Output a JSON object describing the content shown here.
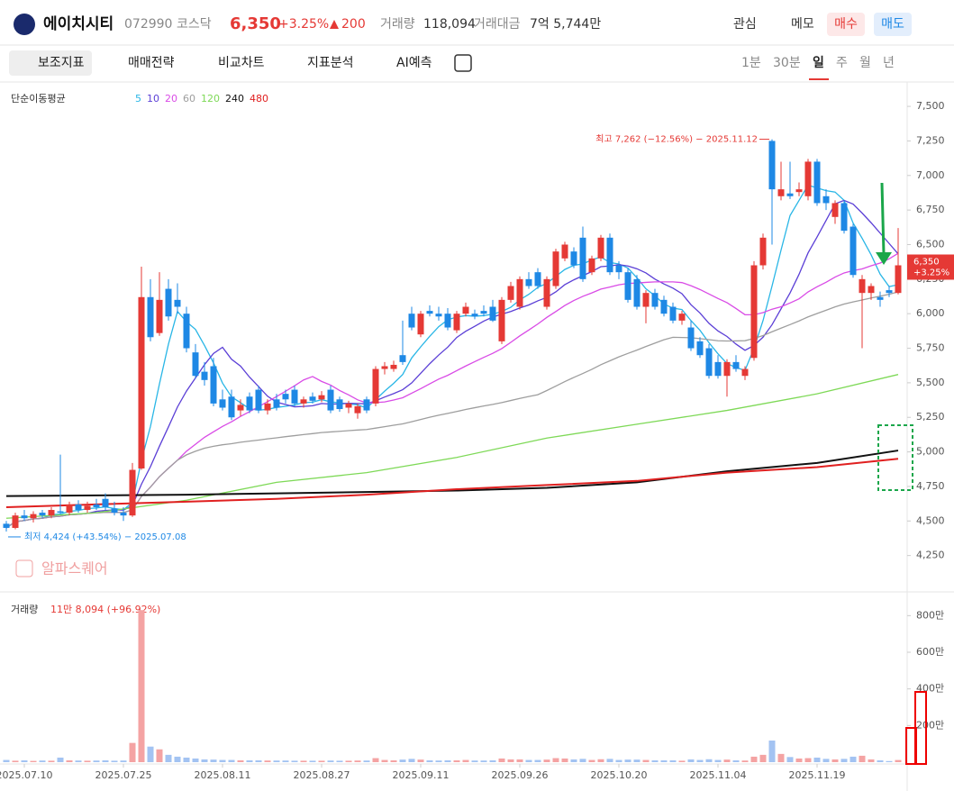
{
  "header": {
    "name": "에이치시티",
    "code": "072990",
    "market": "코스닥",
    "price": "6,350",
    "change_pct": "+3.25%",
    "change": "200",
    "volume_label": "거래량",
    "volume": "118,094",
    "amount_label": "거래대금",
    "amount": "7억 5,744만",
    "buttons": [
      "관심",
      "메모",
      "매수",
      "매도"
    ]
  },
  "toolbar": {
    "items": [
      "보조지표",
      "매매전략",
      "비교차트",
      "지표분석",
      "AI예측"
    ],
    "timeframes": [
      "1분",
      "30분",
      "일",
      "주",
      "월",
      "년"
    ],
    "selected": "일"
  },
  "watermark": "알파스퀘어",
  "chart_data": {
    "type": "candlestick",
    "ma_label": "단순이동평균",
    "up_color": "#e53935",
    "down_color": "#1e88e5",
    "ylim": [
      4000,
      7670
    ],
    "yticks": [
      {
        "value": 4250,
        "label": "4,250"
      },
      {
        "value": 4500,
        "label": "4,500"
      },
      {
        "value": 4750,
        "label": "4,750"
      },
      {
        "value": 5000,
        "label": "5,000"
      },
      {
        "value": 5250,
        "label": "5,250"
      },
      {
        "value": 5500,
        "label": "5,500"
      },
      {
        "value": 5750,
        "label": "5,750"
      },
      {
        "value": 6000,
        "label": "6,000"
      },
      {
        "value": 6250,
        "label": "6,250"
      },
      {
        "value": 6500,
        "label": "6,500"
      },
      {
        "value": 6750,
        "label": "6,750"
      },
      {
        "value": 7000,
        "label": "7,000"
      },
      {
        "value": 7250,
        "label": "7,250"
      },
      {
        "value": 7500,
        "label": "7,500"
      }
    ],
    "xticks": [
      {
        "value": 2,
        "label": "2025.07.10"
      },
      {
        "value": 13,
        "label": "2025.07.25"
      },
      {
        "value": 24,
        "label": "2025.08.11"
      },
      {
        "value": 35,
        "label": "2025.08.27"
      },
      {
        "value": 46,
        "label": "2025.09.11"
      },
      {
        "value": 57,
        "label": "2025.09.26"
      },
      {
        "value": 68,
        "label": "2025.10.20"
      },
      {
        "value": 79,
        "label": "2025.11.04"
      },
      {
        "value": 90,
        "label": "2025.11.19"
      }
    ],
    "candles": [
      [
        4480,
        4500,
        4424,
        4450
      ],
      [
        4450,
        4560,
        4440,
        4540
      ],
      [
        4540,
        4580,
        4500,
        4520
      ],
      [
        4520,
        4570,
        4490,
        4550
      ],
      [
        4560,
        4580,
        4520,
        4540
      ],
      [
        4540,
        4600,
        4520,
        4580
      ],
      [
        4570,
        4980,
        4550,
        4560
      ],
      [
        4560,
        4640,
        4540,
        4620
      ],
      [
        4620,
        4650,
        4560,
        4580
      ],
      [
        4580,
        4640,
        4560,
        4610
      ],
      [
        4620,
        4660,
        4580,
        4600
      ],
      [
        4660,
        4700,
        4580,
        4600
      ],
      [
        4590,
        4640,
        4540,
        4560
      ],
      [
        4560,
        4600,
        4500,
        4540
      ],
      [
        4540,
        4920,
        4530,
        4870
      ],
      [
        4880,
        6340,
        4870,
        6120
      ],
      [
        6120,
        6250,
        5800,
        5830
      ],
      [
        5860,
        6300,
        5840,
        6100
      ],
      [
        6180,
        6250,
        5950,
        5980
      ],
      [
        6100,
        6220,
        6000,
        6050
      ],
      [
        6000,
        6050,
        5720,
        5750
      ],
      [
        5720,
        5780,
        5530,
        5550
      ],
      [
        5580,
        5650,
        5480,
        5520
      ],
      [
        5620,
        5680,
        5330,
        5350
      ],
      [
        5380,
        5450,
        5300,
        5320
      ],
      [
        5400,
        5450,
        5230,
        5250
      ],
      [
        5300,
        5380,
        5260,
        5340
      ],
      [
        5400,
        5430,
        5280,
        5300
      ],
      [
        5450,
        5480,
        5280,
        5300
      ],
      [
        5300,
        5380,
        5270,
        5350
      ],
      [
        5380,
        5420,
        5300,
        5320
      ],
      [
        5420,
        5450,
        5350,
        5380
      ],
      [
        5450,
        5480,
        5330,
        5350
      ],
      [
        5350,
        5400,
        5320,
        5380
      ],
      [
        5400,
        5430,
        5350,
        5370
      ],
      [
        5380,
        5440,
        5360,
        5410
      ],
      [
        5450,
        5480,
        5280,
        5300
      ],
      [
        5380,
        5400,
        5290,
        5310
      ],
      [
        5320,
        5370,
        5280,
        5350
      ],
      [
        5280,
        5350,
        5240,
        5330
      ],
      [
        5380,
        5400,
        5280,
        5300
      ],
      [
        5350,
        5620,
        5330,
        5600
      ],
      [
        5600,
        5650,
        5560,
        5620
      ],
      [
        5600,
        5660,
        5580,
        5630
      ],
      [
        5700,
        5950,
        5630,
        5650
      ],
      [
        6000,
        6050,
        5880,
        5900
      ],
      [
        5850,
        6020,
        5830,
        6000
      ],
      [
        6020,
        6060,
        5980,
        6000
      ],
      [
        6000,
        6050,
        5950,
        5980
      ],
      [
        6000,
        6040,
        5880,
        5900
      ],
      [
        5880,
        6020,
        5860,
        6000
      ],
      [
        6000,
        6080,
        5980,
        6050
      ],
      [
        6000,
        6030,
        5960,
        5980
      ],
      [
        6020,
        6060,
        5980,
        6000
      ],
      [
        6050,
        6100,
        5940,
        5950
      ],
      [
        5800,
        6120,
        5780,
        6100
      ],
      [
        6100,
        6230,
        6080,
        6200
      ],
      [
        6050,
        6270,
        6030,
        6250
      ],
      [
        6250,
        6300,
        6180,
        6200
      ],
      [
        6300,
        6330,
        6180,
        6200
      ],
      [
        6050,
        6270,
        6030,
        6250
      ],
      [
        6200,
        6470,
        6180,
        6450
      ],
      [
        6400,
        6520,
        6380,
        6500
      ],
      [
        6450,
        6480,
        6330,
        6350
      ],
      [
        6550,
        6630,
        6230,
        6250
      ],
      [
        6300,
        6420,
        6280,
        6400
      ],
      [
        6400,
        6570,
        6380,
        6550
      ],
      [
        6550,
        6580,
        6280,
        6300
      ],
      [
        6350,
        6380,
        6250,
        6300
      ],
      [
        6300,
        6330,
        6080,
        6100
      ],
      [
        6250,
        6280,
        6030,
        6050
      ],
      [
        6050,
        6170,
        5930,
        6150
      ],
      [
        6150,
        6180,
        6030,
        6050
      ],
      [
        6100,
        6130,
        5980,
        6000
      ],
      [
        6050,
        6080,
        5930,
        5950
      ],
      [
        5950,
        6020,
        5920,
        6000
      ],
      [
        5900,
        5950,
        5730,
        5750
      ],
      [
        5800,
        5830,
        5680,
        5700
      ],
      [
        5750,
        5780,
        5530,
        5550
      ],
      [
        5650,
        5700,
        5530,
        5550
      ],
      [
        5550,
        5670,
        5400,
        5650
      ],
      [
        5650,
        5700,
        5580,
        5600
      ],
      [
        5550,
        5620,
        5520,
        5600
      ],
      [
        5680,
        6380,
        5660,
        6350
      ],
      [
        6350,
        6580,
        6320,
        6550
      ],
      [
        7250,
        7262,
        6500,
        6900
      ],
      [
        6850,
        7100,
        6820,
        6900
      ],
      [
        6870,
        7100,
        6830,
        6850
      ],
      [
        6880,
        6950,
        6850,
        6900
      ],
      [
        6850,
        7120,
        6820,
        7100
      ],
      [
        7100,
        7120,
        6780,
        6800
      ],
      [
        6850,
        6900,
        6750,
        6800
      ],
      [
        6700,
        6820,
        6650,
        6800
      ],
      [
        6800,
        6820,
        6580,
        6600
      ],
      [
        6630,
        6650,
        6260,
        6280
      ],
      [
        6150,
        6280,
        5750,
        6250
      ],
      [
        6150,
        6220,
        6100,
        6200
      ],
      [
        6120,
        6160,
        6050,
        6100
      ],
      [
        6170,
        6200,
        6120,
        6150
      ],
      [
        6150,
        6620,
        6140,
        6350
      ]
    ],
    "ma": [
      {
        "period": 5,
        "color": "#29b6e6"
      },
      {
        "period": 10,
        "color": "#5b3fd6"
      },
      {
        "period": 20,
        "color": "#d94be6"
      },
      {
        "period": 60,
        "color": "#9e9e9e"
      },
      {
        "period": 120,
        "color": "#7ed957",
        "x": [
          0,
          10,
          20,
          30,
          40,
          50,
          60,
          70,
          80,
          90,
          99
        ],
        "values": [
          4520,
          4560,
          4650,
          4780,
          4850,
          4960,
          5100,
          5200,
          5300,
          5420,
          5560
        ]
      },
      {
        "period": 240,
        "color": "#111111",
        "x": [
          0,
          10,
          20,
          30,
          40,
          50,
          60,
          70,
          80,
          90,
          99
        ],
        "values": [
          4680,
          4685,
          4690,
          4700,
          4710,
          4720,
          4740,
          4780,
          4860,
          4920,
          5010
        ]
      },
      {
        "period": 480,
        "color": "#e02020",
        "x": [
          0,
          10,
          20,
          30,
          40,
          50,
          60,
          70,
          80,
          90,
          99
        ],
        "values": [
          4600,
          4620,
          4640,
          4660,
          4690,
          4730,
          4760,
          4790,
          4850,
          4890,
          4950
        ]
      }
    ],
    "max_label": "최고 7,262 (−12.56%) − 2025.11.12",
    "min_label": "최저 4,424 (+43.54%) − 2025.07.08",
    "last_price": {
      "value": 6350,
      "label": "6,350",
      "change": "+3.25%"
    },
    "volume": {
      "title": "거래량",
      "last": "11만 8,094 (+96.92%)",
      "ylim": [
        0,
        900
      ],
      "yticks": [
        {
          "value": 200,
          "label": "200만"
        },
        {
          "value": 400,
          "label": "400만"
        },
        {
          "value": 600,
          "label": "600만"
        },
        {
          "value": 800,
          "label": "800만"
        }
      ],
      "values": [
        12,
        8,
        10,
        7,
        9,
        8,
        25,
        10,
        9,
        8,
        9,
        10,
        8,
        9,
        105,
        830,
        85,
        70,
        40,
        30,
        25,
        20,
        15,
        14,
        12,
        12,
        10,
        10,
        10,
        9,
        9,
        9,
        8,
        8,
        8,
        8,
        9,
        8,
        8,
        9,
        9,
        22,
        12,
        10,
        14,
        18,
        14,
        10,
        9,
        10,
        10,
        12,
        9,
        9,
        10,
        20,
        15,
        15,
        12,
        12,
        14,
        22,
        20,
        15,
        18,
        12,
        16,
        18,
        12,
        14,
        14,
        12,
        10,
        10,
        10,
        8,
        15,
        12,
        16,
        12,
        14,
        10,
        9,
        30,
        40,
        118,
        45,
        28,
        20,
        22,
        25,
        18,
        15,
        18,
        30,
        35,
        15,
        10,
        6,
        11.8094
      ]
    }
  }
}
